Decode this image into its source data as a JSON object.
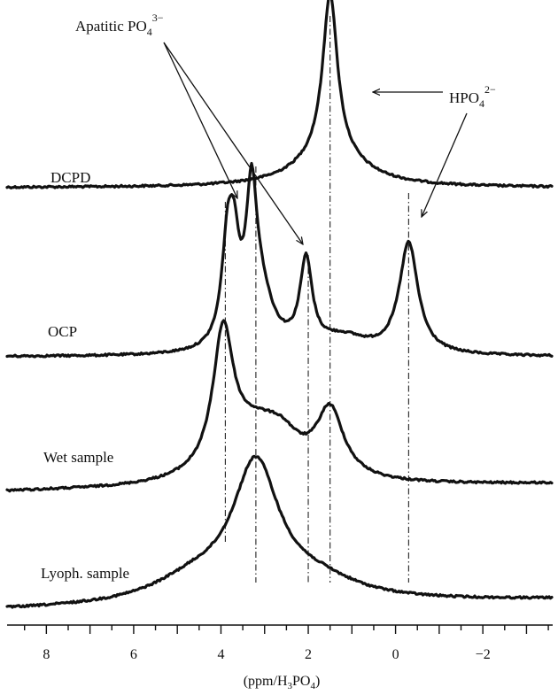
{
  "chart_data": {
    "type": "line",
    "x_axis": {
      "label_main": "(ppm/H",
      "label_sub1": "3",
      "label_mid": "PO",
      "label_sub2": "4",
      "label_end": ")",
      "range": [
        8.9,
        -3.6
      ],
      "reversed": true,
      "ticks": [
        8,
        6,
        4,
        2,
        0,
        -2
      ],
      "tick_labels": [
        "8",
        "6",
        "4",
        "2",
        "0",
        "−2"
      ]
    },
    "series": [
      {
        "name": "DCPD",
        "peaks_ppm": [
          1.5
        ],
        "height_fraction": 0.32
      },
      {
        "name": "OCP",
        "peaks_ppm": [
          3.7,
          3.3,
          2.0,
          -0.3
        ],
        "height_fraction": 0.31
      },
      {
        "name": "Wet sample",
        "peaks_ppm": [
          3.9,
          1.5
        ],
        "height_fraction": 0.25
      },
      {
        "name": "Lyoph. sample",
        "peaks_ppm": [
          3.2
        ],
        "height_fraction": 0.28
      }
    ],
    "reference_lines_ppm": [
      3.9,
      3.2,
      2.0,
      1.5,
      -0.3
    ],
    "annotations": [
      {
        "text": "Apatitic PO",
        "sub": "4",
        "sup": "3−"
      },
      {
        "text": "HPO",
        "sub": "4",
        "sup": "2−"
      }
    ],
    "grid": false
  }
}
